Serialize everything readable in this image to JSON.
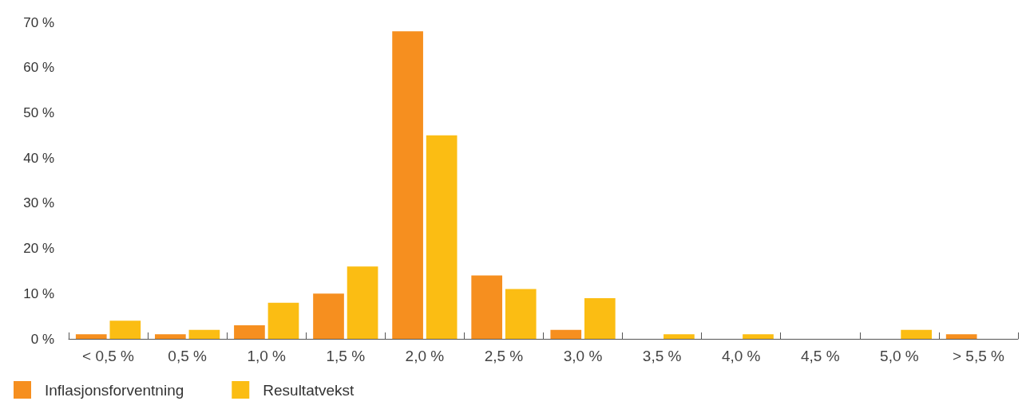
{
  "chart_data": {
    "type": "bar",
    "categories": [
      "< 0,5 %",
      "0,5 %",
      "1,0 %",
      "1,5 %",
      "2,0 %",
      "2,5 %",
      "3,0 %",
      "3,5 %",
      "4,0 %",
      "4,5 %",
      "5,0 %",
      "> 5,5 %"
    ],
    "series": [
      {
        "name": "Inflasjonsforventning",
        "color": "#f68f1f",
        "values": [
          1,
          1,
          3,
          10,
          68,
          14,
          2,
          0,
          0,
          0,
          0,
          1
        ]
      },
      {
        "name": "Resultatvekst",
        "color": "#fbbd13",
        "values": [
          4,
          2,
          8,
          16,
          45,
          11,
          9,
          1,
          1,
          0,
          2,
          0
        ]
      }
    ],
    "ylim": [
      0,
      70
    ],
    "yticks": [
      {
        "value": 0,
        "label": "0 %"
      },
      {
        "value": 10,
        "label": "10 %"
      },
      {
        "value": 20,
        "label": "20 %"
      },
      {
        "value": 30,
        "label": "30 %"
      },
      {
        "value": 40,
        "label": "40 %"
      },
      {
        "value": 50,
        "label": "50 %"
      },
      {
        "value": 60,
        "label": "60 %"
      },
      {
        "value": 70,
        "label": "70 %"
      }
    ],
    "grid": false,
    "legend": "bottom left"
  }
}
